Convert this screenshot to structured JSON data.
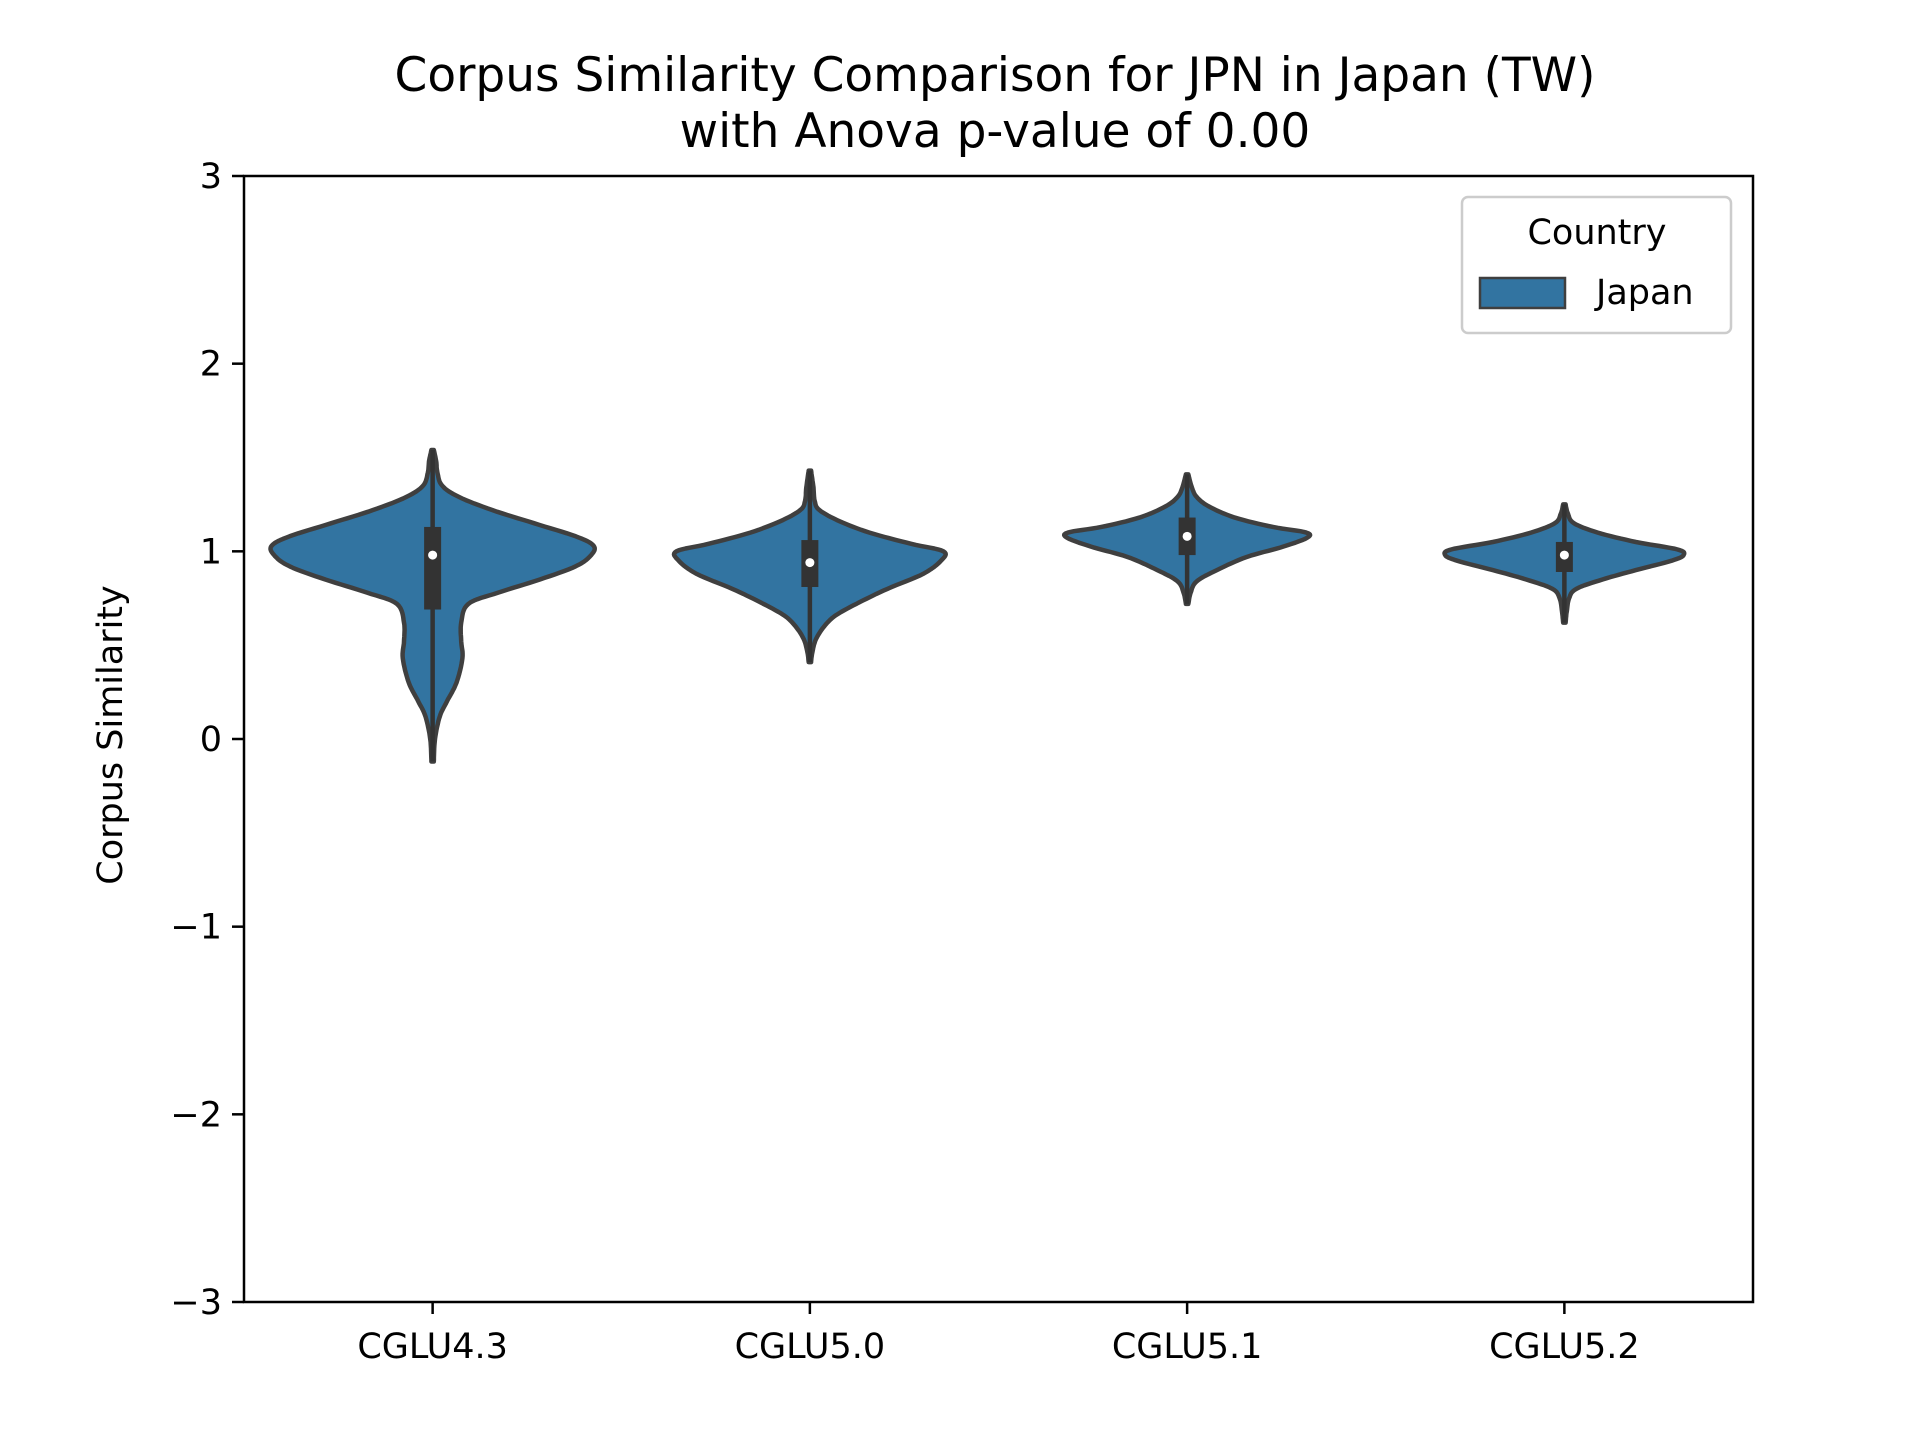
{
  "chart_data": {
    "type": "violin",
    "title": "Corpus Similarity Comparison for JPN in Japan (TW)",
    "subtitle": "with Anova p-value of 0.00",
    "xlabel": "",
    "ylabel": "Corpus Similarity",
    "ylim": [
      -3,
      3
    ],
    "y_ticks": [
      3,
      2,
      1,
      0,
      -1,
      -2,
      -3
    ],
    "y_tick_labels": [
      "3",
      "2",
      "1",
      "0",
      "−1",
      "−2",
      "−3"
    ],
    "categories": [
      "CGLU4.3",
      "CGLU5.0",
      "CGLU5.1",
      "CGLU5.2"
    ],
    "grid": false,
    "legend": {
      "title": "Country",
      "placement": "upper right",
      "entries": [
        "Japan"
      ]
    },
    "colors": {
      "fill": "#3274a1",
      "edge": "#3f3f3f",
      "box": "#333333",
      "median": "#ffffff"
    },
    "series": [
      {
        "name": "Japan",
        "violins": [
          {
            "category": "CGLU4.3",
            "min": -0.12,
            "max": 1.54,
            "q1": 0.69,
            "median": 0.98,
            "q3": 1.13,
            "profile": [
              [
                -0.12,
                0.01
              ],
              [
                0.0,
                0.02
              ],
              [
                0.12,
                0.06
              ],
              [
                0.2,
                0.12
              ],
              [
                0.3,
                0.2
              ],
              [
                0.43,
                0.25
              ],
              [
                0.52,
                0.24
              ],
              [
                0.62,
                0.24
              ],
              [
                0.72,
                0.3
              ],
              [
                0.78,
                0.55
              ],
              [
                0.85,
                0.9
              ],
              [
                0.92,
                1.2
              ],
              [
                0.98,
                1.33
              ],
              [
                1.03,
                1.35
              ],
              [
                1.08,
                1.2
              ],
              [
                1.15,
                0.85
              ],
              [
                1.22,
                0.5
              ],
              [
                1.29,
                0.22
              ],
              [
                1.35,
                0.08
              ],
              [
                1.42,
                0.04
              ],
              [
                1.48,
                0.03
              ],
              [
                1.54,
                0.01
              ]
            ]
          },
          {
            "category": "CGLU5.0",
            "min": 0.41,
            "max": 1.43,
            "q1": 0.81,
            "median": 0.94,
            "q3": 1.06,
            "profile": [
              [
                0.41,
                0.01
              ],
              [
                0.46,
                0.02
              ],
              [
                0.53,
                0.05
              ],
              [
                0.6,
                0.12
              ],
              [
                0.66,
                0.22
              ],
              [
                0.73,
                0.42
              ],
              [
                0.8,
                0.65
              ],
              [
                0.88,
                0.95
              ],
              [
                0.95,
                1.1
              ],
              [
                1.0,
                1.12
              ],
              [
                1.04,
                0.85
              ],
              [
                1.1,
                0.5
              ],
              [
                1.16,
                0.25
              ],
              [
                1.22,
                0.08
              ],
              [
                1.27,
                0.04
              ],
              [
                1.34,
                0.03
              ],
              [
                1.43,
                0.01
              ]
            ]
          },
          {
            "category": "CGLU5.1",
            "min": 0.72,
            "max": 1.41,
            "q1": 0.98,
            "median": 1.08,
            "q3": 1.18,
            "profile": [
              [
                0.72,
                0.01
              ],
              [
                0.78,
                0.03
              ],
              [
                0.84,
                0.08
              ],
              [
                0.9,
                0.25
              ],
              [
                0.97,
                0.5
              ],
              [
                1.02,
                0.78
              ],
              [
                1.07,
                1.0
              ],
              [
                1.1,
                1.0
              ],
              [
                1.13,
                0.72
              ],
              [
                1.18,
                0.4
              ],
              [
                1.24,
                0.18
              ],
              [
                1.29,
                0.08
              ],
              [
                1.34,
                0.04
              ],
              [
                1.41,
                0.01
              ]
            ]
          },
          {
            "category": "CGLU5.2",
            "min": 0.62,
            "max": 1.25,
            "q1": 0.89,
            "median": 0.98,
            "q3": 1.05,
            "profile": [
              [
                0.62,
                0.01
              ],
              [
                0.68,
                0.02
              ],
              [
                0.75,
                0.04
              ],
              [
                0.8,
                0.1
              ],
              [
                0.85,
                0.32
              ],
              [
                0.9,
                0.6
              ],
              [
                0.95,
                0.9
              ],
              [
                0.98,
                1.0
              ],
              [
                1.01,
                0.95
              ],
              [
                1.05,
                0.6
              ],
              [
                1.1,
                0.28
              ],
              [
                1.15,
                0.08
              ],
              [
                1.2,
                0.03
              ],
              [
                1.25,
                0.01
              ]
            ]
          }
        ]
      }
    ]
  }
}
